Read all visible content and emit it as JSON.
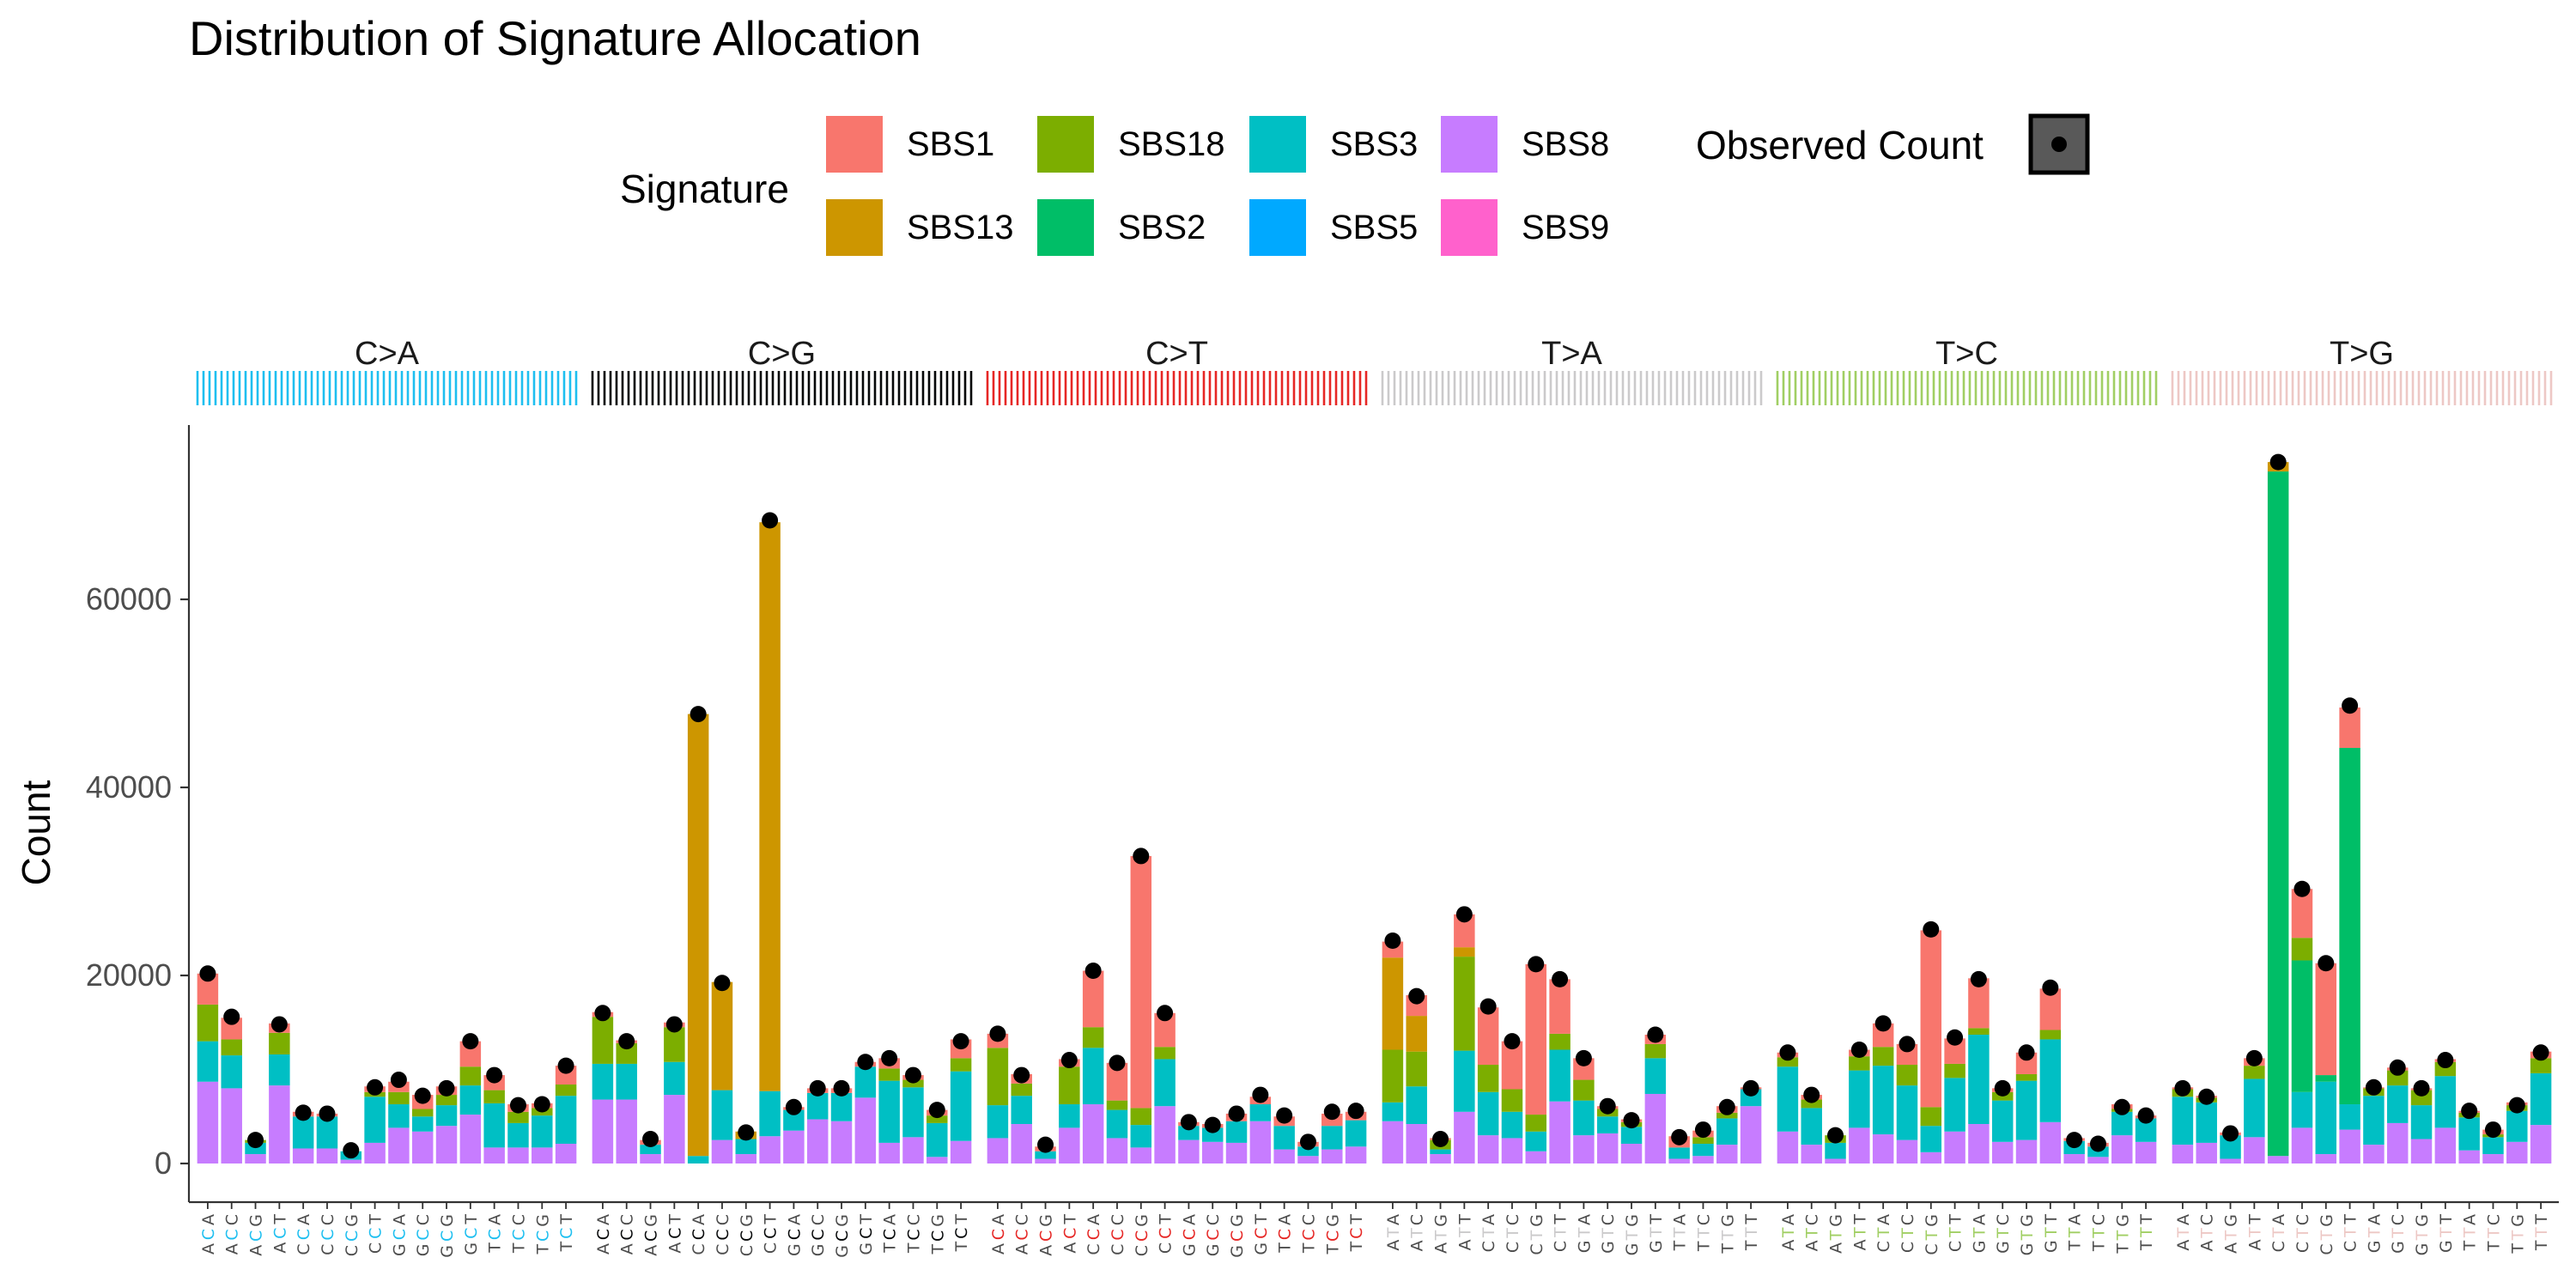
{
  "chart_data": {
    "type": "bar",
    "title": "Distribution of Signature Allocation",
    "xlabel": "",
    "ylabel": "Count",
    "ylim": [
      -2500,
      78000
    ],
    "yticks": [
      0,
      20000,
      40000,
      60000
    ],
    "yticklabels": [
      "0",
      "20000",
      "40000",
      "60000"
    ],
    "grid": false,
    "stacked": true,
    "legend": {
      "position": "top",
      "title": "Signature",
      "observed_title": "Observed Count",
      "entries": [
        {
          "name": "SBS1",
          "color": "#F8766D"
        },
        {
          "name": "SBS13",
          "color": "#CD9600"
        },
        {
          "name": "SBS18",
          "color": "#7CAE00"
        },
        {
          "name": "SBS2",
          "color": "#00BE67"
        },
        {
          "name": "SBS3",
          "color": "#00BFC4"
        },
        {
          "name": "SBS5",
          "color": "#00A9FF"
        },
        {
          "name": "SBS8",
          "color": "#C77CFF"
        },
        {
          "name": "SBS9",
          "color": "#FF61CC"
        }
      ]
    },
    "groups": [
      {
        "name": "C>A",
        "color": "#1EBFF0",
        "contexts": [
          "ACA",
          "ACC",
          "ACG",
          "ACT",
          "CCA",
          "CCC",
          "CCG",
          "CCT",
          "GCA",
          "GCC",
          "GCG",
          "GCT",
          "TCA",
          "TCC",
          "TCG",
          "TCT"
        ]
      },
      {
        "name": "C>G",
        "color": "#050708",
        "contexts": [
          "ACA",
          "ACC",
          "ACG",
          "ACT",
          "CCA",
          "CCC",
          "CCG",
          "CCT",
          "GCA",
          "GCC",
          "GCG",
          "GCT",
          "TCA",
          "TCC",
          "TCG",
          "TCT"
        ]
      },
      {
        "name": "C>T",
        "color": "#E62725",
        "contexts": [
          "ACA",
          "ACC",
          "ACG",
          "ACT",
          "CCA",
          "CCC",
          "CCG",
          "CCT",
          "GCA",
          "GCC",
          "GCG",
          "GCT",
          "TCA",
          "TCC",
          "TCG",
          "TCT"
        ]
      },
      {
        "name": "T>A",
        "color": "#CBCACB",
        "contexts": [
          "ATA",
          "ATC",
          "ATG",
          "ATT",
          "CTA",
          "CTC",
          "CTG",
          "CTT",
          "GTA",
          "GTC",
          "GTG",
          "GTT",
          "TTA",
          "TTC",
          "TTG",
          "TTT"
        ]
      },
      {
        "name": "T>C",
        "color": "#A1CF64",
        "contexts": [
          "ATA",
          "ATC",
          "ATG",
          "ATT",
          "CTA",
          "CTC",
          "CTG",
          "CTT",
          "GTA",
          "GTC",
          "GTG",
          "GTT",
          "TTA",
          "TTC",
          "TTG",
          "TTT"
        ]
      },
      {
        "name": "T>G",
        "color": "#EDC8C5",
        "contexts": [
          "ATA",
          "ATC",
          "ATG",
          "ATT",
          "CTA",
          "CTC",
          "CTG",
          "CTT",
          "GTA",
          "GTC",
          "GTG",
          "GTT",
          "TTA",
          "TTC",
          "TTG",
          "TTT"
        ]
      }
    ],
    "series_order": [
      "SBS9",
      "SBS8",
      "SBS3",
      "SBS5",
      "SBS2",
      "SBS18",
      "SBS13",
      "SBS1"
    ],
    "bars": [
      [
        0,
        8700,
        4300,
        0,
        0,
        3900,
        0,
        3300
      ],
      [
        0,
        8000,
        3500,
        0,
        0,
        1700,
        0,
        2300
      ],
      [
        0,
        1000,
        1200,
        0,
        0,
        300,
        0,
        0
      ],
      [
        0,
        8300,
        3300,
        0,
        0,
        2300,
        0,
        1000
      ],
      [
        0,
        1600,
        3400,
        0,
        0,
        0,
        0,
        500
      ],
      [
        0,
        1600,
        3400,
        0,
        0,
        0,
        0,
        300
      ],
      [
        0,
        400,
        900,
        0,
        0,
        0,
        0,
        0
      ],
      [
        0,
        2200,
        4900,
        0,
        0,
        500,
        0,
        600
      ],
      [
        0,
        3800,
        2500,
        0,
        0,
        1300,
        0,
        1100
      ],
      [
        0,
        3400,
        1600,
        0,
        0,
        800,
        0,
        1500
      ],
      [
        0,
        4000,
        2200,
        0,
        0,
        1100,
        0,
        900
      ],
      [
        0,
        5200,
        3100,
        0,
        0,
        2000,
        0,
        2700
      ],
      [
        0,
        1700,
        4700,
        0,
        0,
        1400,
        0,
        1600
      ],
      [
        0,
        1700,
        2600,
        0,
        0,
        1200,
        0,
        800
      ],
      [
        0,
        1700,
        3400,
        0,
        0,
        800,
        0,
        500
      ],
      [
        0,
        2100,
        5100,
        0,
        0,
        1200,
        0,
        2000
      ],
      [
        0,
        6800,
        3800,
        0,
        0,
        5000,
        0,
        500
      ],
      [
        0,
        6800,
        3800,
        0,
        0,
        2200,
        0,
        300
      ],
      [
        0,
        1000,
        1000,
        0,
        0,
        0,
        0,
        500
      ],
      [
        0,
        7300,
        3500,
        0,
        0,
        3700,
        0,
        500
      ],
      [
        0,
        0,
        800,
        0,
        0,
        0,
        47000,
        0
      ],
      [
        0,
        2500,
        5300,
        0,
        0,
        0,
        11500,
        0
      ],
      [
        0,
        1000,
        1600,
        0,
        0,
        0,
        800,
        0
      ],
      [
        0,
        2900,
        4800,
        0,
        0,
        0,
        60500,
        0
      ],
      [
        0,
        3500,
        2200,
        0,
        0,
        0,
        0,
        300
      ],
      [
        0,
        4700,
        2800,
        0,
        0,
        0,
        0,
        500
      ],
      [
        0,
        4500,
        3000,
        0,
        0,
        0,
        0,
        500
      ],
      [
        0,
        7000,
        3300,
        0,
        0,
        0,
        0,
        500
      ],
      [
        0,
        2200,
        6600,
        0,
        0,
        1300,
        0,
        1100
      ],
      [
        0,
        2800,
        5300,
        0,
        0,
        800,
        0,
        500
      ],
      [
        0,
        700,
        3600,
        0,
        0,
        800,
        0,
        600
      ],
      [
        0,
        2400,
        7400,
        0,
        0,
        1400,
        0,
        2000
      ],
      [
        0,
        2700,
        3500,
        0,
        0,
        6100,
        0,
        1500
      ],
      [
        0,
        4200,
        3000,
        0,
        0,
        1300,
        0,
        1000
      ],
      [
        0,
        500,
        800,
        0,
        0,
        0,
        0,
        500
      ],
      [
        0,
        3800,
        2500,
        0,
        0,
        4000,
        0,
        800
      ],
      [
        0,
        6300,
        6000,
        0,
        0,
        2200,
        0,
        6000
      ],
      [
        0,
        2700,
        3000,
        0,
        0,
        1000,
        0,
        4000
      ],
      [
        0,
        1700,
        2400,
        0,
        0,
        1800,
        0,
        26800
      ],
      [
        0,
        6100,
        5000,
        0,
        0,
        1300,
        0,
        3600
      ],
      [
        0,
        2500,
        1500,
        0,
        0,
        0,
        0,
        400
      ],
      [
        0,
        2300,
        1500,
        0,
        0,
        0,
        0,
        400
      ],
      [
        0,
        2200,
        2300,
        0,
        0,
        0,
        0,
        800
      ],
      [
        0,
        4500,
        1800,
        0,
        0,
        0,
        0,
        800
      ],
      [
        0,
        1500,
        2500,
        0,
        0,
        0,
        0,
        1000
      ],
      [
        0,
        800,
        1000,
        0,
        0,
        0,
        0,
        500
      ],
      [
        0,
        1500,
        2500,
        0,
        0,
        0,
        0,
        1300
      ],
      [
        0,
        1800,
        2800,
        0,
        0,
        0,
        0,
        900
      ],
      [
        0,
        4500,
        2000,
        0,
        0,
        5600,
        9800,
        1700
      ],
      [
        0,
        4200,
        4000,
        0,
        0,
        3700,
        3800,
        2200
      ],
      [
        0,
        1000,
        500,
        0,
        0,
        1000,
        0,
        200
      ],
      [
        0,
        5500,
        6500,
        0,
        0,
        10000,
        1000,
        3500
      ],
      [
        0,
        3000,
        4600,
        0,
        0,
        2900,
        0,
        6100
      ],
      [
        0,
        2700,
        2800,
        0,
        0,
        2400,
        0,
        5100
      ],
      [
        0,
        1300,
        2100,
        0,
        0,
        1800,
        0,
        16000
      ],
      [
        0,
        6600,
        5500,
        0,
        0,
        1700,
        0,
        5800
      ],
      [
        0,
        3000,
        3700,
        0,
        0,
        2200,
        0,
        2300
      ],
      [
        0,
        3200,
        1800,
        0,
        0,
        800,
        0,
        300
      ],
      [
        0,
        2100,
        1800,
        0,
        0,
        500,
        0,
        300
      ],
      [
        0,
        7400,
        3800,
        0,
        0,
        1500,
        0,
        1000
      ],
      [
        0,
        500,
        1200,
        0,
        0,
        0,
        0,
        1200
      ],
      [
        0,
        800,
        1300,
        0,
        0,
        700,
        0,
        700
      ],
      [
        0,
        2000,
        2800,
        0,
        0,
        600,
        0,
        700
      ],
      [
        0,
        6100,
        1800,
        0,
        0,
        0,
        0,
        200
      ],
      [
        0,
        3400,
        6900,
        0,
        0,
        1000,
        0,
        500
      ],
      [
        0,
        2000,
        3900,
        0,
        0,
        900,
        0,
        500
      ],
      [
        0,
        500,
        1700,
        0,
        0,
        800,
        0,
        0
      ],
      [
        0,
        3800,
        6100,
        0,
        0,
        1500,
        0,
        700
      ],
      [
        0,
        3100,
        7300,
        0,
        0,
        2000,
        0,
        2500
      ],
      [
        0,
        2500,
        5800,
        0,
        0,
        2200,
        0,
        2200
      ],
      [
        0,
        1200,
        2800,
        0,
        0,
        2000,
        0,
        18800
      ],
      [
        0,
        3400,
        5700,
        0,
        0,
        1500,
        0,
        2700
      ],
      [
        0,
        4200,
        9500,
        0,
        0,
        700,
        0,
        5300
      ],
      [
        0,
        2300,
        4400,
        0,
        0,
        900,
        0,
        400
      ],
      [
        0,
        2500,
        6300,
        0,
        0,
        700,
        0,
        2300
      ],
      [
        0,
        4400,
        8800,
        0,
        0,
        1000,
        0,
        4400
      ],
      [
        0,
        1000,
        1400,
        0,
        0,
        0,
        0,
        300
      ],
      [
        0,
        700,
        1100,
        0,
        0,
        0,
        0,
        400
      ],
      [
        0,
        3000,
        2500,
        0,
        0,
        300,
        0,
        500
      ],
      [
        0,
        2300,
        2500,
        0,
        0,
        0,
        0,
        300
      ],
      [
        0,
        2000,
        5100,
        0,
        0,
        800,
        0,
        200
      ],
      [
        0,
        2200,
        4300,
        0,
        0,
        500,
        0,
        200
      ],
      [
        0,
        500,
        2500,
        0,
        0,
        0,
        0,
        300
      ],
      [
        0,
        2800,
        6200,
        0,
        0,
        1400,
        0,
        800
      ],
      [
        0,
        800,
        0,
        0,
        72800,
        0,
        1000,
        0
      ],
      [
        0,
        3800,
        3800,
        0,
        14000,
        2400,
        0,
        5200
      ],
      [
        0,
        1000,
        7700,
        0,
        700,
        0,
        0,
        11900
      ],
      [
        0,
        3600,
        2700,
        0,
        37900,
        0,
        0,
        4300
      ],
      [
        0,
        2000,
        5200,
        0,
        0,
        800,
        0,
        100
      ],
      [
        0,
        4300,
        4000,
        0,
        0,
        1600,
        0,
        300
      ],
      [
        0,
        2600,
        3600,
        0,
        0,
        1600,
        0,
        200
      ],
      [
        0,
        3800,
        5500,
        0,
        0,
        1500,
        0,
        300
      ],
      [
        0,
        1400,
        3500,
        0,
        0,
        500,
        0,
        200
      ],
      [
        0,
        1000,
        1800,
        0,
        0,
        300,
        0,
        500
      ],
      [
        0,
        2300,
        3300,
        0,
        0,
        600,
        0,
        300
      ],
      [
        0,
        4100,
        5500,
        0,
        0,
        1600,
        0,
        700
      ]
    ],
    "observed": [
      20200,
      15600,
      2500,
      14800,
      5400,
      5300,
      1400,
      8100,
      8900,
      7200,
      8000,
      13000,
      9400,
      6200,
      6300,
      10400,
      16000,
      13000,
      2600,
      14800,
      47800,
      19200,
      3300,
      68400,
      6000,
      8000,
      8000,
      10800,
      11200,
      9400,
      5700,
      13000,
      13800,
      9400,
      2000,
      11000,
      20500,
      10700,
      32700,
      16000,
      4400,
      4100,
      5300,
      7300,
      5100,
      2300,
      5500,
      5600,
      23700,
      17800,
      2600,
      26500,
      16700,
      13000,
      21200,
      19600,
      11200,
      6100,
      4600,
      13700,
      2800,
      3600,
      6000,
      8000,
      11800,
      7300,
      3000,
      12100,
      14900,
      12700,
      24900,
      13400,
      19600,
      8000,
      11800,
      18700,
      2500,
      2100,
      6000,
      5100,
      8000,
      7100,
      3200,
      11200,
      74600,
      29200,
      21300,
      48700,
      8100,
      10200,
      8000,
      11000,
      5600,
      3600,
      6200,
      11800
    ]
  }
}
